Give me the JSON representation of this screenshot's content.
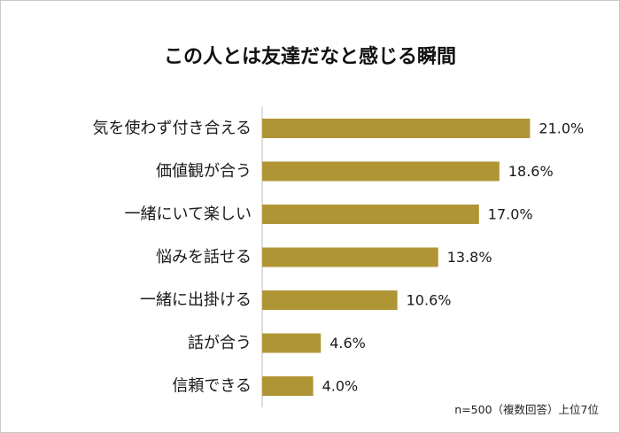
{
  "chart_data": {
    "type": "bar",
    "orientation": "horizontal",
    "title": "この人とは友達だなと感じる瞬間",
    "categories": [
      "気を使わず付き合える",
      "価値観が合う",
      "一緒にいて楽しい",
      "悩みを話せる",
      "一緒に出掛ける",
      "話が合う",
      "信頼できる"
    ],
    "values": [
      21.0,
      18.6,
      17.0,
      13.8,
      10.6,
      4.6,
      4.0
    ],
    "value_labels": [
      "21.0%",
      "18.6%",
      "17.0%",
      "13.8%",
      "10.6%",
      "4.6%",
      "4.0%"
    ],
    "unit": "%",
    "xlim": [
      0,
      25
    ],
    "grid": false,
    "legend": "none",
    "bar_color": "#b09535",
    "note": "n=500（複数回答）上位7位"
  }
}
